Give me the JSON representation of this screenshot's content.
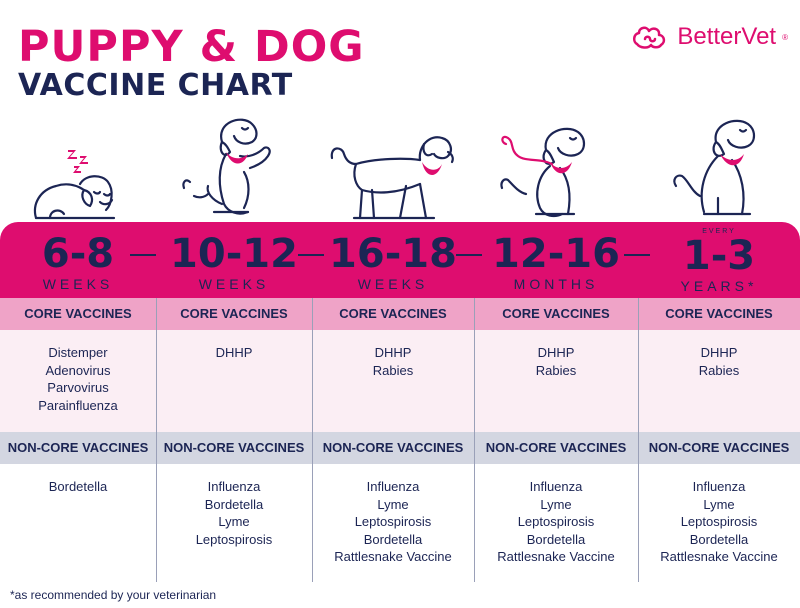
{
  "title": {
    "line1": "PUPPY & DOG",
    "line2": "VACCINE CHART"
  },
  "brand": {
    "name": "BetterVet",
    "mark": "®"
  },
  "colors": {
    "accent": "#de0d6f",
    "navy": "#1c2554",
    "pink_light": "#efa3c7",
    "pink_pale": "#fbeef4",
    "gray": "#d3d6e1"
  },
  "columns": [
    {
      "age": "6-8",
      "unit": "WEEKS",
      "every": "",
      "core_header": "CORE VACCINES",
      "core": [
        "Distemper",
        "Adenovirus",
        "Parvovirus",
        "Parainfluenza"
      ],
      "noncore_header": "NON-CORE VACCINES",
      "noncore": [
        "Bordetella"
      ],
      "illustration": "sleeping-puppy-icon"
    },
    {
      "age": "10-12",
      "unit": "WEEKS",
      "every": "",
      "core_header": "CORE VACCINES",
      "core": [
        "DHHP"
      ],
      "noncore_header": "NON-CORE VACCINES",
      "noncore": [
        "Influenza",
        "Bordetella",
        "Lyme",
        "Leptospirosis"
      ],
      "illustration": "begging-puppy-icon"
    },
    {
      "age": "16-18",
      "unit": "WEEKS",
      "every": "",
      "core_header": "CORE VACCINES",
      "core": [
        "DHHP",
        "Rabies"
      ],
      "noncore_header": "NON-CORE VACCINES",
      "noncore": [
        "Influenza",
        "Lyme",
        "Leptospirosis",
        "Bordetella",
        "Rattlesnake Vaccine"
      ],
      "illustration": "walking-dog-icon"
    },
    {
      "age": "12-16",
      "unit": "MONTHS",
      "every": "",
      "core_header": "CORE VACCINES",
      "core": [
        "DHHP",
        "Rabies"
      ],
      "noncore_header": "NON-CORE VACCINES",
      "noncore": [
        "Influenza",
        "Lyme",
        "Leptospirosis",
        "Bordetella",
        "Rattlesnake Vaccine"
      ],
      "illustration": "sitting-dog-leash-icon"
    },
    {
      "age": "1-3",
      "unit": "YEARS*",
      "every": "EVERY",
      "core_header": "CORE VACCINES",
      "core": [
        "DHHP",
        "Rabies"
      ],
      "noncore_header": "NON-CORE VACCINES",
      "noncore": [
        "Influenza",
        "Lyme",
        "Leptospirosis",
        "Bordetella",
        "Rattlesnake Vaccine"
      ],
      "illustration": "sitting-adult-dog-icon"
    }
  ],
  "footnote": "*as recommended by your veterinarian"
}
